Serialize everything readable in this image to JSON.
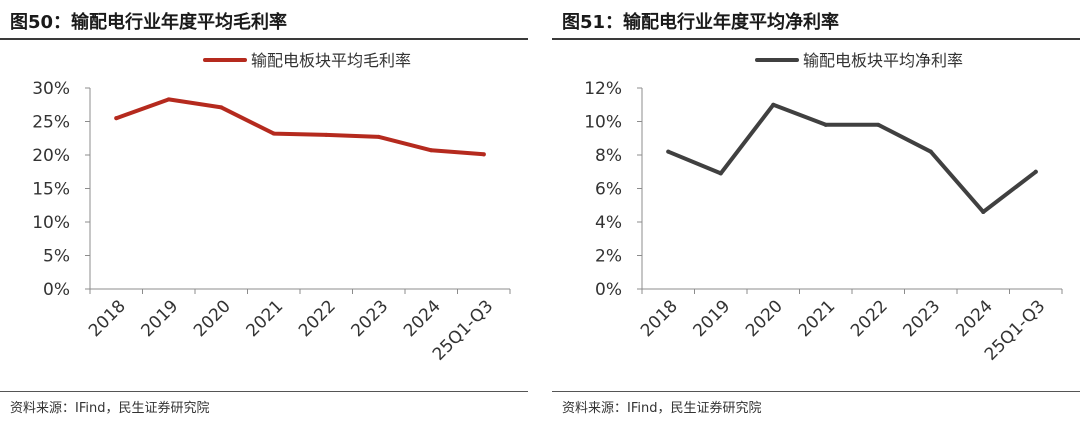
{
  "charts": [
    {
      "figure_title": "图50：输配电行业年度平均毛利率",
      "source": "资料来源：IFind，民生证券研究院",
      "color": "#b52a1e",
      "chart_data": {
        "type": "line",
        "x": [
          "2018",
          "2019",
          "2020",
          "2021",
          "2022",
          "2023",
          "2024",
          "25Q1-Q3"
        ],
        "series": [
          {
            "name": "输配电板块平均毛利率",
            "values": [
              25.5,
              28.3,
              27.1,
              23.2,
              23.0,
              22.7,
              20.7,
              20.1
            ]
          }
        ],
        "y_ticks": [
          "0%",
          "5%",
          "10%",
          "15%",
          "20%",
          "25%",
          "30%"
        ],
        "ylim": [
          0,
          30
        ],
        "y_unit": "%",
        "grid": false,
        "legend_position": "top-center"
      }
    },
    {
      "figure_title": "图51：输配电行业年度平均净利率",
      "source": "资料来源：IFind，民生证券研究院",
      "color": "#404040",
      "chart_data": {
        "type": "line",
        "x": [
          "2018",
          "2019",
          "2020",
          "2021",
          "2022",
          "2023",
          "2024",
          "25Q1-Q3"
        ],
        "series": [
          {
            "name": "输配电板块平均净利率",
            "values": [
              8.2,
              6.9,
              11.0,
              9.8,
              9.8,
              8.2,
              4.6,
              7.0
            ]
          }
        ],
        "y_ticks": [
          "0%",
          "2%",
          "4%",
          "6%",
          "8%",
          "10%",
          "12%"
        ],
        "ylim": [
          0,
          12
        ],
        "y_unit": "%",
        "grid": false,
        "legend_position": "top-center"
      }
    }
  ]
}
